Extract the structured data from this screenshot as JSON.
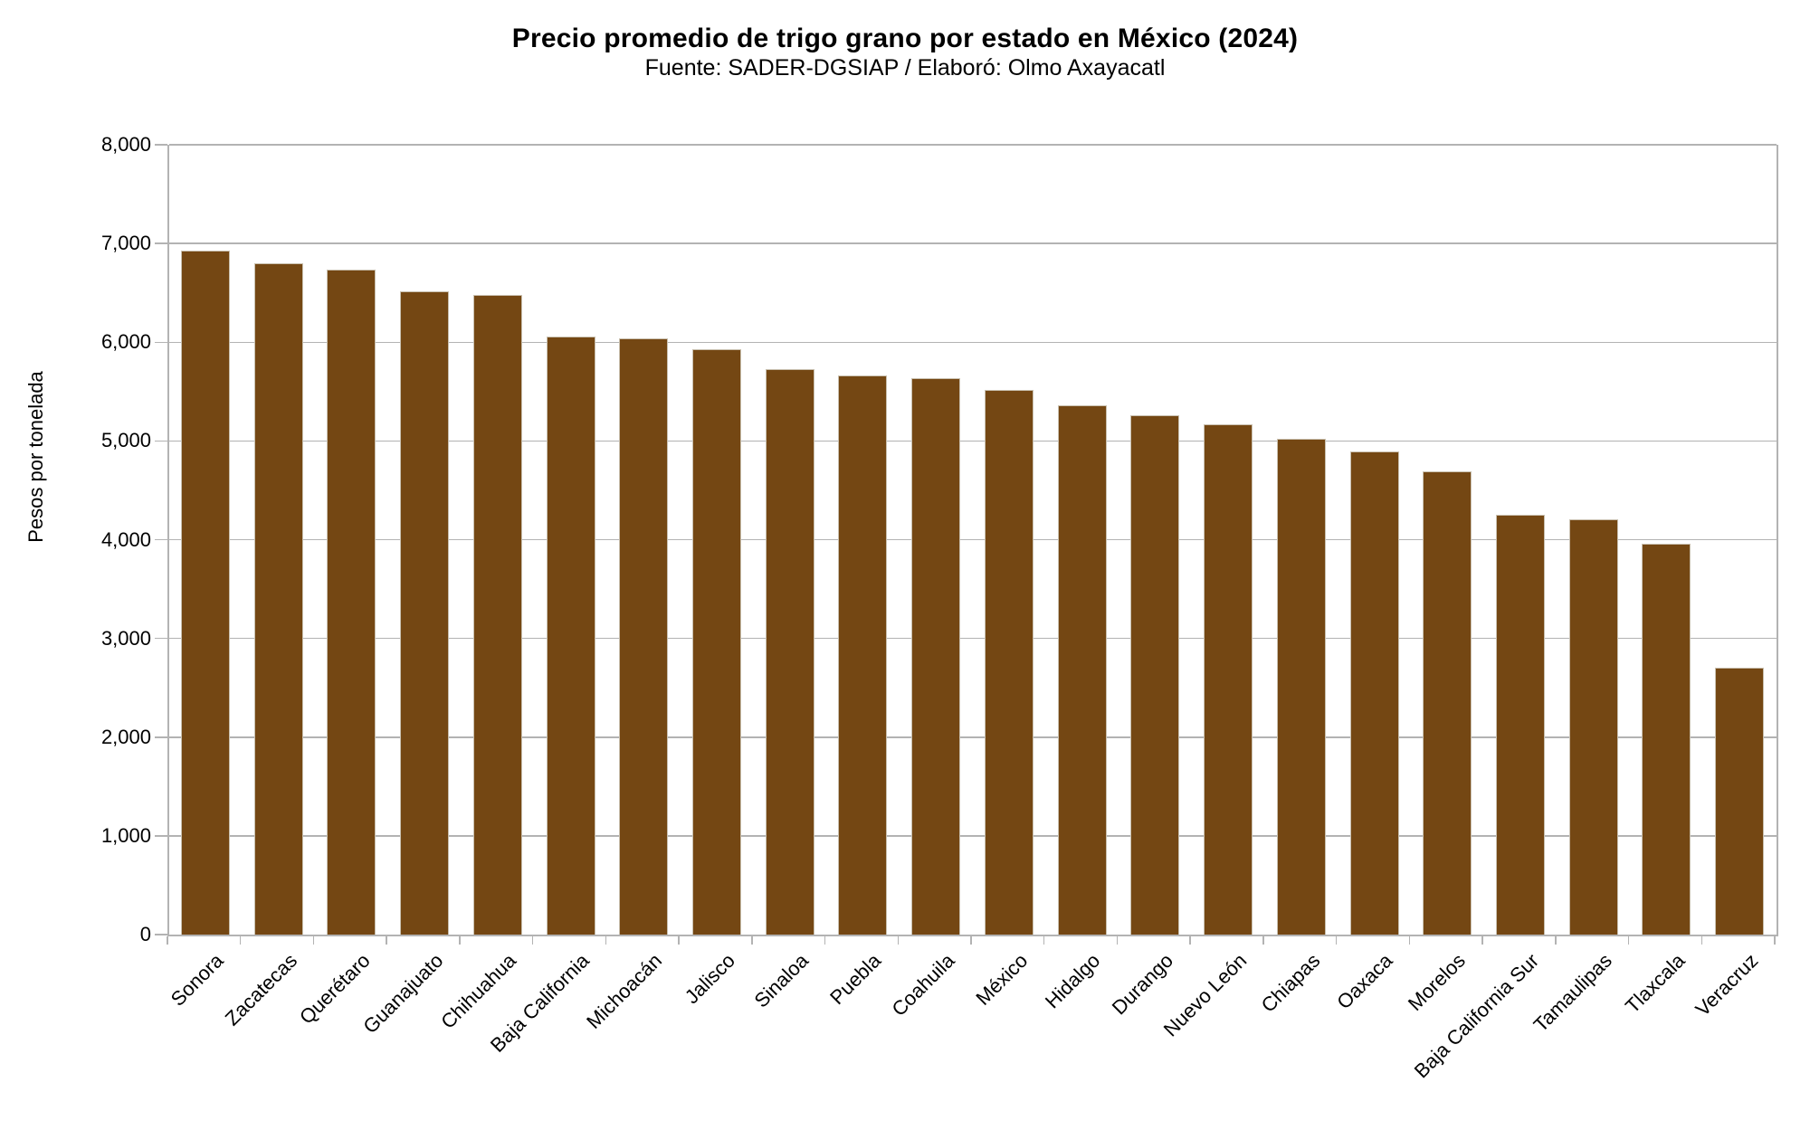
{
  "chart": {
    "title": "Precio promedio de trigo grano por estado en México (2024)",
    "subtitle": "Fuente: SADER-DGSIAP / Elaboró: Olmo Axayacatl",
    "ylabel": "Pesos por tonelada"
  },
  "chart_data": {
    "type": "bar",
    "title": "Precio promedio de trigo grano por estado en México (2024)",
    "subtitle": "Fuente: SADER-DGSIAP / Elaboró: Olmo Axayacatl",
    "xlabel": "",
    "ylabel": "Pesos por tonelada",
    "ylim": [
      0,
      8000
    ],
    "grid": true,
    "legend": false,
    "categories": [
      "Sonora",
      "Zacatecas",
      "Querétaro",
      "Guanajuato",
      "Chihuahua",
      "Baja California",
      "Michoacán",
      "Jalisco",
      "Sinaloa",
      "Puebla",
      "Coahuila",
      "México",
      "Hidalgo",
      "Durango",
      "Nuevo León",
      "Chiapas",
      "Oaxaca",
      "Morelos",
      "Baja California Sur",
      "Tamaulipas",
      "Tlaxcala",
      "Veracruz"
    ],
    "values": [
      6920,
      6790,
      6730,
      6510,
      6470,
      6050,
      6030,
      5920,
      5720,
      5650,
      5630,
      5510,
      5350,
      5250,
      5160,
      5010,
      4880,
      4680,
      4240,
      4200,
      3950,
      2690
    ],
    "y_ticks": [
      0,
      1000,
      2000,
      3000,
      4000,
      5000,
      6000,
      7000,
      8000
    ],
    "y_tick_labels": [
      "0",
      "1,000",
      "2,000",
      "3,000",
      "4,000",
      "5,000",
      "6,000",
      "7,000",
      "8,000"
    ],
    "bar_color": "#744713",
    "bar_border_color": "#c9c0af",
    "grid_color": "#b3b3b3",
    "text_color": "#000000"
  }
}
